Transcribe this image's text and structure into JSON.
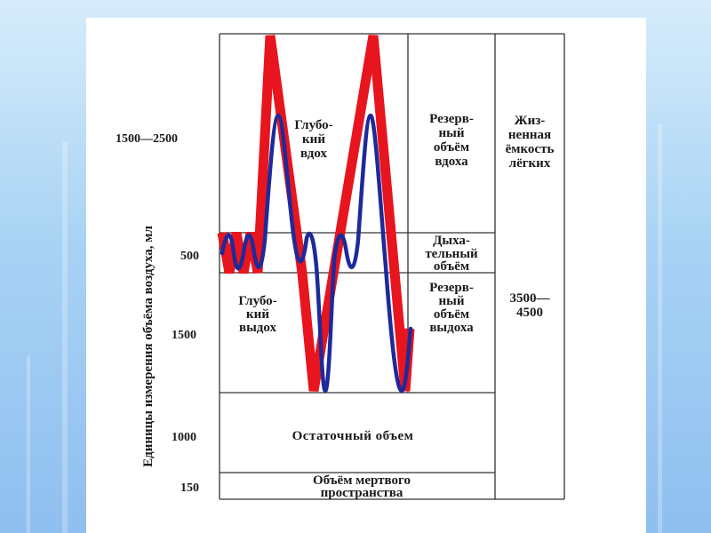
{
  "axis": {
    "title": "Единицы измерения объёма воздуха, мл",
    "ticks": [
      "1500—2500",
      "500",
      "1500",
      "1000",
      "150"
    ]
  },
  "regions": {
    "deep_inhale": [
      "Глубо-",
      "кий",
      "вдох"
    ],
    "deep_exhale": [
      "Глубо-",
      "кий",
      "выдох"
    ],
    "inspiratory_reserve": [
      "Резерв-",
      "ный",
      "объём",
      "вдоха"
    ],
    "tidal_volume": [
      "Дыха-",
      "тельный",
      "объём"
    ],
    "expiratory_reserve": [
      "Резерв-",
      "ный",
      "объём",
      "выдоха"
    ],
    "vital_capacity": [
      "Жиз-",
      "ненная",
      "ёмкость",
      "лёгких"
    ],
    "vital_capacity_value": [
      "3500—",
      "4500"
    ],
    "residual_volume": "Остаточный объем",
    "dead_space": [
      "Объём мертвого",
      "пространства"
    ]
  },
  "colors": {
    "red_curve": "#e8141e",
    "blue_curve": "#1e2a9a",
    "lines": "#333333"
  }
}
